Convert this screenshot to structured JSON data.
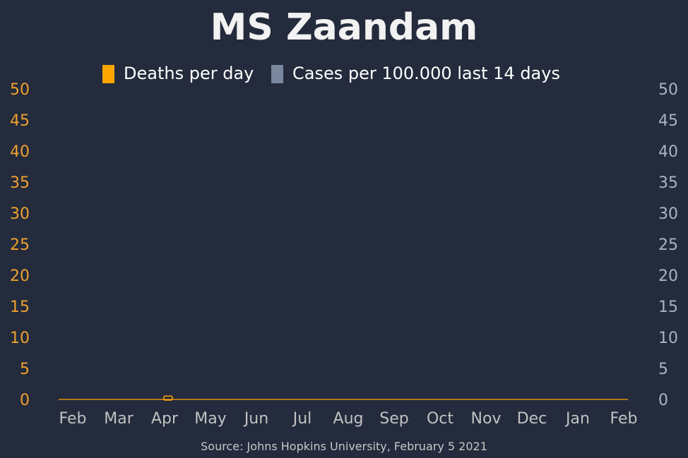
{
  "chart_data": {
    "type": "bar",
    "title": "MS Zaandam",
    "legend": [
      {
        "label": "Deaths per day",
        "color": "#ffa500"
      },
      {
        "label": "Cases per 100.000 last 14 days",
        "color": "#7a879d"
      }
    ],
    "legend_position": "top-center",
    "source": "Source: Johns Hopkins University, February 5 2021",
    "x_ticks": [
      "Feb",
      "Mar",
      "Apr",
      "May",
      "Jun",
      "Jul",
      "Aug",
      "Sep",
      "Oct",
      "Nov",
      "Dec",
      "Jan",
      "Feb"
    ],
    "y_left": {
      "ticks": [
        "0",
        "5",
        "10",
        "15",
        "20",
        "25",
        "30",
        "35",
        "40",
        "45",
        "50"
      ],
      "ylim": [
        0,
        50
      ],
      "color": "#f0a030"
    },
    "y_right": {
      "ticks": [
        "0",
        "5",
        "10",
        "15",
        "20",
        "25",
        "30",
        "35",
        "40",
        "45",
        "50"
      ],
      "ylim": [
        0,
        50
      ],
      "color": "#a9b3c6"
    },
    "xlim": [
      "2020-01-22",
      "2021-02-04"
    ],
    "series": [
      {
        "name": "Deaths per day",
        "axis": "left",
        "color": "#ffa500",
        "points": [
          {
            "x": "2020-04-01",
            "y": 0.2
          },
          {
            "x": "2020-04-02",
            "y": 0.2
          }
        ],
        "baseline_value": 0
      },
      {
        "name": "Cases per 100.000 last 14 days",
        "axis": "right",
        "color": "#7a879d",
        "points": []
      }
    ],
    "grid": false
  }
}
